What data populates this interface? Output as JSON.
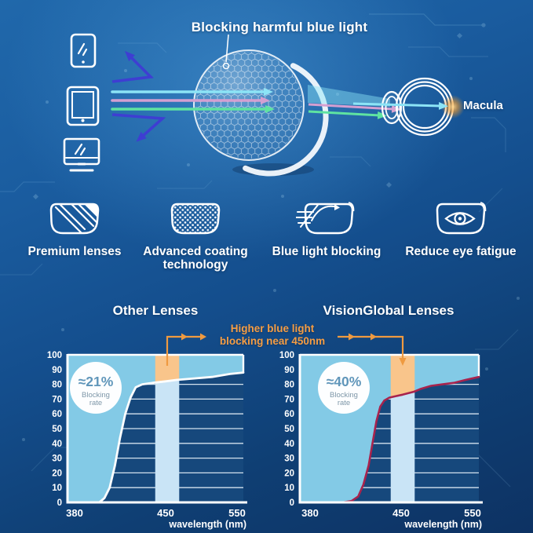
{
  "page": {
    "headline": "Blocking harmful blue light",
    "macula_label": "Macula"
  },
  "features": [
    {
      "label": "Premium lenses",
      "icon": "striped-lens-icon"
    },
    {
      "label": "Advanced coating technology",
      "icon": "honeycomb-lens-icon"
    },
    {
      "label": "Blue light blocking",
      "icon": "ray-blocking-lens-icon"
    },
    {
      "label": "Reduce eye fatigue",
      "icon": "eye-lens-icon"
    }
  ],
  "comparison": {
    "annotation_line1": "Higher blue light",
    "annotation_line2": "blocking near 450nm"
  },
  "chart_data": [
    {
      "type": "area",
      "title": "Other Lenses",
      "badge_value": "≈21%",
      "badge_label_line1": "Blocking",
      "badge_label_line2": "rate",
      "xlabel": "wavelength (nm)",
      "x_ticks": [
        380,
        450,
        550
      ],
      "y_ticks": [
        0,
        10,
        20,
        30,
        40,
        50,
        60,
        70,
        80,
        90,
        100
      ],
      "ylim": [
        0,
        100
      ],
      "x_axis_nonlinear": "380-450 stretched, 450-550 compressed",
      "highlight_band_nm": [
        442,
        469
      ],
      "curve_pct_by_nm": [
        [
          375,
          0
        ],
        [
          399,
          0
        ],
        [
          403,
          3
        ],
        [
          407,
          10
        ],
        [
          411,
          25
        ],
        [
          415,
          44
        ],
        [
          419,
          60
        ],
        [
          423,
          71
        ],
        [
          427,
          78
        ],
        [
          432,
          80
        ],
        [
          440,
          81
        ],
        [
          450,
          82
        ],
        [
          465,
          83
        ],
        [
          490,
          84
        ],
        [
          515,
          85
        ],
        [
          540,
          87
        ],
        [
          558,
          88
        ]
      ]
    },
    {
      "type": "area",
      "title": "VisionGlobal Lenses",
      "badge_value": "≈40%",
      "badge_label_line1": "Blocking",
      "badge_label_line2": "rate",
      "xlabel": "wavelength (nm)",
      "x_ticks": [
        380,
        450,
        550
      ],
      "y_ticks": [
        0,
        10,
        20,
        30,
        40,
        50,
        60,
        70,
        80,
        90,
        100
      ],
      "ylim": [
        0,
        100
      ],
      "x_axis_nonlinear": "380-450 stretched, 450-550 compressed",
      "highlight_band_nm": [
        442,
        469
      ],
      "curve_pct_by_nm": [
        [
          375,
          0
        ],
        [
          405,
          0
        ],
        [
          412,
          1
        ],
        [
          417,
          4
        ],
        [
          421,
          12
        ],
        [
          425,
          25
        ],
        [
          428,
          40
        ],
        [
          431,
          55
        ],
        [
          434,
          65
        ],
        [
          437,
          69
        ],
        [
          441,
          71
        ],
        [
          446,
          72
        ],
        [
          452,
          73
        ],
        [
          460,
          74
        ],
        [
          468,
          75
        ],
        [
          478,
          77
        ],
        [
          492,
          79
        ],
        [
          508,
          80
        ],
        [
          524,
          81
        ],
        [
          540,
          83
        ],
        [
          558,
          85
        ]
      ]
    }
  ],
  "colors": {
    "background_top": "#2068ab",
    "background_bottom": "#0d3263",
    "plot_bg": "#16487c",
    "grid": "#e8f3fb",
    "chart_fill": "#83cae6",
    "chart_band": "#c9e4f6",
    "chart_band_highlight": "#f9c58b",
    "curve_other": "#fdfeff",
    "curve_visionglobal": "#a8234d",
    "annotation_orange": "#ef9a40",
    "badge_text": "#6096ba",
    "badge_sub_text": "#7e97a8",
    "arrow_blue": "#3e3ed2",
    "arrow_cyan": "#8ce4f6",
    "arrow_pink": "#d49fd1",
    "arrow_green": "#5fe3a1",
    "macula_glow": "#f2a93f",
    "text": "#ffffff"
  }
}
